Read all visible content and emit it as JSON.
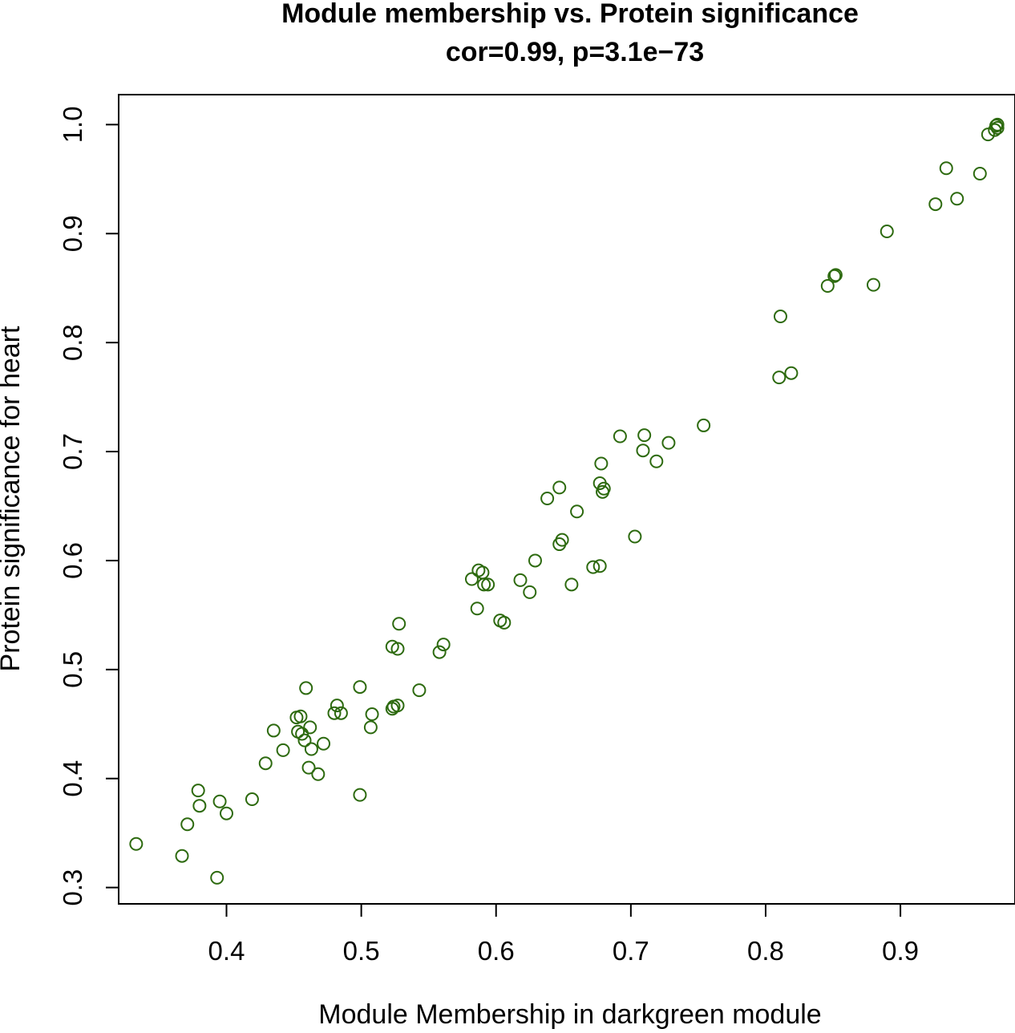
{
  "chart_data": {
    "type": "scatter",
    "title": "Module membership vs. Protein significance",
    "subtitle": "cor=0.99, p=3.1e−73",
    "xlabel": "Module Membership in darkgreen module",
    "ylabel": "Protein significance for heart",
    "xlim": [
      0.32,
      0.985
    ],
    "ylim": [
      0.285,
      1.0275
    ],
    "xticks": [
      0.4,
      0.5,
      0.6,
      0.7,
      0.8,
      0.9
    ],
    "xtick_labels": [
      "0.4",
      "0.5",
      "0.6",
      "0.7",
      "0.8",
      "0.9"
    ],
    "yticks": [
      0.3,
      0.4,
      0.5,
      0.6,
      0.7,
      0.8,
      0.9,
      1.0
    ],
    "ytick_labels": [
      "0.3",
      "0.4",
      "0.5",
      "0.6",
      "0.7",
      "0.8",
      "0.9",
      "1.0"
    ],
    "marker": "open-circle",
    "point_color": "#2d6a0f",
    "grid": false,
    "points": [
      {
        "x": 0.333,
        "y": 0.34
      },
      {
        "x": 0.367,
        "y": 0.329
      },
      {
        "x": 0.371,
        "y": 0.358
      },
      {
        "x": 0.379,
        "y": 0.389
      },
      {
        "x": 0.38,
        "y": 0.375
      },
      {
        "x": 0.393,
        "y": 0.309
      },
      {
        "x": 0.395,
        "y": 0.379
      },
      {
        "x": 0.4,
        "y": 0.368
      },
      {
        "x": 0.419,
        "y": 0.381
      },
      {
        "x": 0.429,
        "y": 0.414
      },
      {
        "x": 0.435,
        "y": 0.444
      },
      {
        "x": 0.442,
        "y": 0.426
      },
      {
        "x": 0.452,
        "y": 0.456
      },
      {
        "x": 0.453,
        "y": 0.443
      },
      {
        "x": 0.455,
        "y": 0.457
      },
      {
        "x": 0.456,
        "y": 0.441
      },
      {
        "x": 0.458,
        "y": 0.435
      },
      {
        "x": 0.459,
        "y": 0.483
      },
      {
        "x": 0.461,
        "y": 0.41
      },
      {
        "x": 0.462,
        "y": 0.447
      },
      {
        "x": 0.463,
        "y": 0.427
      },
      {
        "x": 0.468,
        "y": 0.404
      },
      {
        "x": 0.472,
        "y": 0.432
      },
      {
        "x": 0.48,
        "y": 0.46
      },
      {
        "x": 0.482,
        "y": 0.467
      },
      {
        "x": 0.485,
        "y": 0.46
      },
      {
        "x": 0.499,
        "y": 0.484
      },
      {
        "x": 0.499,
        "y": 0.385
      },
      {
        "x": 0.507,
        "y": 0.447
      },
      {
        "x": 0.508,
        "y": 0.459
      },
      {
        "x": 0.523,
        "y": 0.521
      },
      {
        "x": 0.523,
        "y": 0.464
      },
      {
        "x": 0.524,
        "y": 0.466
      },
      {
        "x": 0.527,
        "y": 0.467
      },
      {
        "x": 0.527,
        "y": 0.519
      },
      {
        "x": 0.528,
        "y": 0.542
      },
      {
        "x": 0.543,
        "y": 0.481
      },
      {
        "x": 0.558,
        "y": 0.516
      },
      {
        "x": 0.561,
        "y": 0.523
      },
      {
        "x": 0.582,
        "y": 0.583
      },
      {
        "x": 0.586,
        "y": 0.556
      },
      {
        "x": 0.587,
        "y": 0.591
      },
      {
        "x": 0.59,
        "y": 0.589
      },
      {
        "x": 0.591,
        "y": 0.578
      },
      {
        "x": 0.594,
        "y": 0.578
      },
      {
        "x": 0.603,
        "y": 0.545
      },
      {
        "x": 0.606,
        "y": 0.543
      },
      {
        "x": 0.618,
        "y": 0.582
      },
      {
        "x": 0.625,
        "y": 0.571
      },
      {
        "x": 0.629,
        "y": 0.6
      },
      {
        "x": 0.638,
        "y": 0.657
      },
      {
        "x": 0.647,
        "y": 0.667
      },
      {
        "x": 0.647,
        "y": 0.615
      },
      {
        "x": 0.649,
        "y": 0.619
      },
      {
        "x": 0.656,
        "y": 0.578
      },
      {
        "x": 0.66,
        "y": 0.645
      },
      {
        "x": 0.672,
        "y": 0.594
      },
      {
        "x": 0.677,
        "y": 0.595
      },
      {
        "x": 0.677,
        "y": 0.671
      },
      {
        "x": 0.678,
        "y": 0.689
      },
      {
        "x": 0.679,
        "y": 0.663
      },
      {
        "x": 0.68,
        "y": 0.666
      },
      {
        "x": 0.692,
        "y": 0.714
      },
      {
        "x": 0.703,
        "y": 0.622
      },
      {
        "x": 0.709,
        "y": 0.701
      },
      {
        "x": 0.71,
        "y": 0.715
      },
      {
        "x": 0.719,
        "y": 0.691
      },
      {
        "x": 0.728,
        "y": 0.708
      },
      {
        "x": 0.754,
        "y": 0.724
      },
      {
        "x": 0.81,
        "y": 0.768
      },
      {
        "x": 0.811,
        "y": 0.824
      },
      {
        "x": 0.819,
        "y": 0.772
      },
      {
        "x": 0.846,
        "y": 0.852
      },
      {
        "x": 0.851,
        "y": 0.861
      },
      {
        "x": 0.852,
        "y": 0.862
      },
      {
        "x": 0.88,
        "y": 0.853
      },
      {
        "x": 0.89,
        "y": 0.902
      },
      {
        "x": 0.926,
        "y": 0.927
      },
      {
        "x": 0.934,
        "y": 0.96
      },
      {
        "x": 0.942,
        "y": 0.932
      },
      {
        "x": 0.959,
        "y": 0.955
      },
      {
        "x": 0.965,
        "y": 0.991
      },
      {
        "x": 0.97,
        "y": 0.995
      },
      {
        "x": 0.971,
        "y": 0.999
      },
      {
        "x": 0.972,
        "y": 1.0
      },
      {
        "x": 0.972,
        "y": 0.997
      }
    ]
  }
}
